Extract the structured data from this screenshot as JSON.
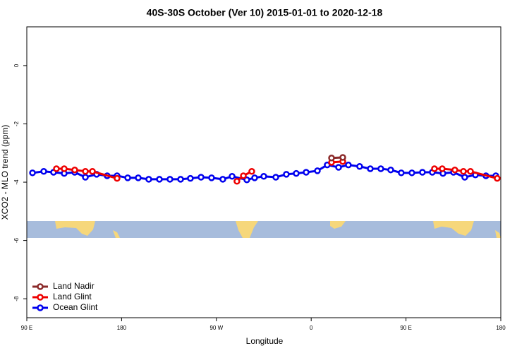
{
  "chart_data": {
    "type": "line",
    "title": "40S-30S October (Ver 10)   2015-01-01 to 2020-12-18",
    "x_label": "Longitude",
    "y_label": "XCO2 - MLO trend (ppm)",
    "xlim": [
      90,
      540
    ],
    "ylim": [
      -8.65,
      1.33
    ],
    "xticks": [
      {
        "value": 90,
        "label": "90 E"
      },
      180,
      {
        "value": 270,
        "label": "90 W"
      },
      {
        "value": 360,
        "label": "0"
      },
      {
        "value": 450,
        "label": "90 E"
      },
      {
        "value": 540,
        "label": "180"
      }
    ],
    "yticks": [
      0,
      -2,
      -4,
      -6,
      -8
    ],
    "legend": "bottom-left",
    "series": [
      {
        "name": "Land Nadir",
        "color": "#8b2a2a",
        "x": [
          379.3,
          390.0
        ],
        "values": [
          -3.17,
          -3.15
        ]
      },
      {
        "name": "Land Glint",
        "color": "#ee0000",
        "x": [
          118.1,
          125.5,
          135.5,
          145.6,
          152.3,
          175.7,
          230,
          289.5,
          295.6,
          303.6,
          340,
          379.3,
          390.0,
          430,
          477.0,
          484.4,
          496.4,
          504.5,
          511.2,
          536.6
        ],
        "values": [
          -3.54,
          -3.54,
          -3.58,
          -3.63,
          -3.63,
          -3.87,
          null,
          -3.97,
          -3.78,
          -3.63,
          null,
          -3.32,
          -3.29,
          null,
          -3.54,
          -3.54,
          -3.58,
          -3.63,
          -3.63,
          -3.87
        ]
      },
      {
        "name": "Ocean Glint",
        "color": "#0000ee",
        "x": [
          95.4,
          106.1,
          115.4,
          125.5,
          135.5,
          145.6,
          156.3,
          166.3,
          175.7,
          185.8,
          195.8,
          205.8,
          215.9,
          225.9,
          236.0,
          245.3,
          255.4,
          265.4,
          276.1,
          284.9,
          298.9,
          306.3,
          315.0,
          326.4,
          336.4,
          345.8,
          355.2,
          365.9,
          375.2,
          386.0,
          395.3,
          406.0,
          416.1,
          426.1,
          435.5,
          445.5,
          455.6,
          465.6,
          475.0,
          485.1,
          495.1,
          505.8,
          515.9,
          525.9,
          535.3
        ],
        "values": [
          -3.68,
          -3.63,
          -3.66,
          -3.7,
          -3.66,
          -3.83,
          -3.73,
          -3.78,
          -3.78,
          -3.85,
          -3.85,
          -3.9,
          -3.9,
          -3.9,
          -3.9,
          -3.87,
          -3.83,
          -3.85,
          -3.9,
          -3.8,
          -3.92,
          -3.85,
          -3.8,
          -3.83,
          -3.73,
          -3.7,
          -3.66,
          -3.61,
          -3.41,
          -3.49,
          -3.41,
          -3.46,
          -3.54,
          -3.54,
          -3.58,
          -3.68,
          -3.68,
          -3.66,
          -3.66,
          -3.7,
          -3.66,
          -3.83,
          -3.75,
          -3.78,
          -3.78
        ]
      }
    ]
  }
}
